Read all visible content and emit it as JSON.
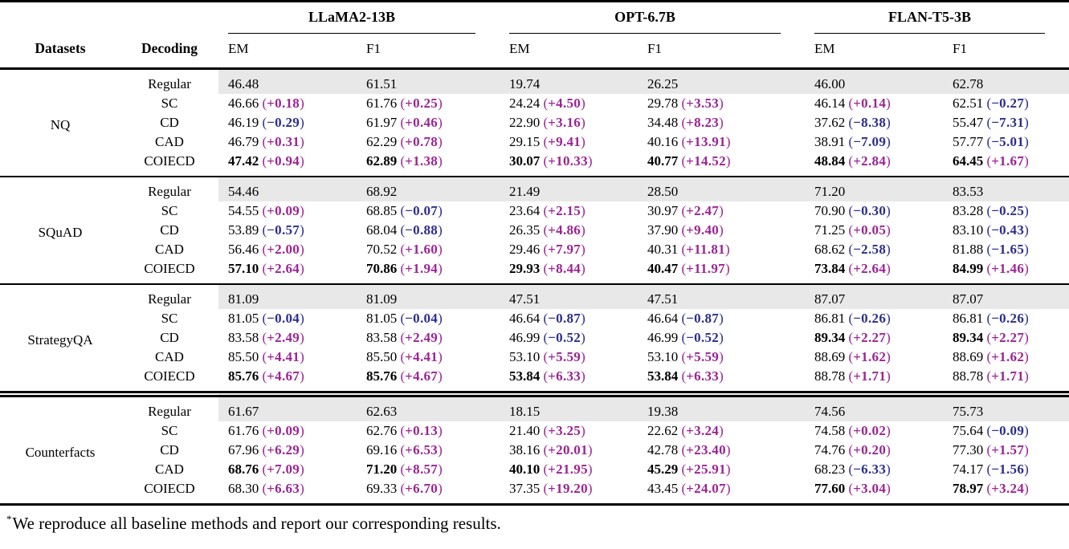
{
  "colors": {
    "positive_delta": "#9b2493",
    "negative_delta": "#2b2e8e",
    "highlight_row": "#e8e8e8"
  },
  "header": {
    "datasets_label": "Datasets",
    "decoding_label": "Decoding",
    "groups": [
      {
        "label": "LLaMA2-13B"
      },
      {
        "label": "OPT-6.7B"
      },
      {
        "label": "FLAN-T5-3B"
      }
    ],
    "metrics": [
      "EM",
      "F1",
      "EM",
      "F1",
      "EM",
      "F1"
    ]
  },
  "sections": [
    {
      "dataset": "NQ",
      "separator": "single",
      "rows": [
        {
          "decoding": "Regular",
          "highlight": true,
          "cells": [
            {
              "v": "46.48"
            },
            {
              "v": "61.51"
            },
            {
              "v": "19.74"
            },
            {
              "v": "26.25"
            },
            {
              "v": "46.00"
            },
            {
              "v": "62.78"
            }
          ]
        },
        {
          "decoding": "SC",
          "cells": [
            {
              "v": "46.66",
              "d": "+0.18"
            },
            {
              "v": "61.76",
              "d": "+0.25"
            },
            {
              "v": "24.24",
              "d": "+4.50"
            },
            {
              "v": "29.78",
              "d": "+3.53"
            },
            {
              "v": "46.14",
              "d": "+0.14"
            },
            {
              "v": "62.51",
              "d": "−0.27"
            }
          ]
        },
        {
          "decoding": "CD",
          "cells": [
            {
              "v": "46.19",
              "d": "−0.29"
            },
            {
              "v": "61.97",
              "d": "+0.46"
            },
            {
              "v": "22.90",
              "d": "+3.16"
            },
            {
              "v": "34.48",
              "d": "+8.23"
            },
            {
              "v": "37.62",
              "d": "−8.38"
            },
            {
              "v": "55.47",
              "d": "−7.31"
            }
          ]
        },
        {
          "decoding": "CAD",
          "cells": [
            {
              "v": "46.79",
              "d": "+0.31"
            },
            {
              "v": "62.29",
              "d": "+0.78"
            },
            {
              "v": "29.15",
              "d": "+9.41"
            },
            {
              "v": "40.16",
              "d": "+13.91"
            },
            {
              "v": "38.91",
              "d": "−7.09"
            },
            {
              "v": "57.77",
              "d": "−5.01"
            }
          ]
        },
        {
          "decoding": "COIECD",
          "cells": [
            {
              "v": "47.42",
              "b": true,
              "d": "+0.94"
            },
            {
              "v": "62.89",
              "b": true,
              "d": "+1.38"
            },
            {
              "v": "30.07",
              "b": true,
              "d": "+10.33"
            },
            {
              "v": "40.77",
              "b": true,
              "d": "+14.52"
            },
            {
              "v": "48.84",
              "b": true,
              "d": "+2.84"
            },
            {
              "v": "64.45",
              "b": true,
              "d": "+1.67"
            }
          ]
        }
      ]
    },
    {
      "dataset": "SQuAD",
      "separator": "single",
      "rows": [
        {
          "decoding": "Regular",
          "highlight": true,
          "cells": [
            {
              "v": "54.46"
            },
            {
              "v": "68.92"
            },
            {
              "v": "21.49"
            },
            {
              "v": "28.50"
            },
            {
              "v": "71.20"
            },
            {
              "v": "83.53"
            }
          ]
        },
        {
          "decoding": "SC",
          "cells": [
            {
              "v": "54.55",
              "d": "+0.09"
            },
            {
              "v": "68.85",
              "d": "−0.07"
            },
            {
              "v": "23.64",
              "d": "+2.15"
            },
            {
              "v": "30.97",
              "d": "+2.47"
            },
            {
              "v": "70.90",
              "d": "−0.30"
            },
            {
              "v": "83.28",
              "d": "−0.25"
            }
          ]
        },
        {
          "decoding": "CD",
          "cells": [
            {
              "v": "53.89",
              "d": "−0.57"
            },
            {
              "v": "68.04",
              "d": "−0.88"
            },
            {
              "v": "26.35",
              "d": "+4.86"
            },
            {
              "v": "37.90",
              "d": "+9.40"
            },
            {
              "v": "71.25",
              "d": "+0.05"
            },
            {
              "v": "83.10",
              "d": "−0.43"
            }
          ]
        },
        {
          "decoding": "CAD",
          "cells": [
            {
              "v": "56.46",
              "d": "+2.00"
            },
            {
              "v": "70.52",
              "d": "+1.60"
            },
            {
              "v": "29.46",
              "d": "+7.97"
            },
            {
              "v": "40.31",
              "d": "+11.81"
            },
            {
              "v": "68.62",
              "d": "−2.58"
            },
            {
              "v": "81.88",
              "d": "−1.65"
            }
          ]
        },
        {
          "decoding": "COIECD",
          "cells": [
            {
              "v": "57.10",
              "b": true,
              "d": "+2.64"
            },
            {
              "v": "70.86",
              "b": true,
              "d": "+1.94"
            },
            {
              "v": "29.93",
              "b": true,
              "d": "+8.44"
            },
            {
              "v": "40.47",
              "b": true,
              "d": "+11.97"
            },
            {
              "v": "73.84",
              "b": true,
              "d": "+2.64"
            },
            {
              "v": "84.99",
              "b": true,
              "d": "+1.46"
            }
          ]
        }
      ]
    },
    {
      "dataset": "StrategyQA",
      "separator": "single",
      "rows": [
        {
          "decoding": "Regular",
          "highlight": true,
          "cells": [
            {
              "v": "81.09"
            },
            {
              "v": "81.09"
            },
            {
              "v": "47.51"
            },
            {
              "v": "47.51"
            },
            {
              "v": "87.07"
            },
            {
              "v": "87.07"
            }
          ]
        },
        {
          "decoding": "SC",
          "cells": [
            {
              "v": "81.05",
              "d": "−0.04"
            },
            {
              "v": "81.05",
              "d": "−0.04"
            },
            {
              "v": "46.64",
              "d": "−0.87"
            },
            {
              "v": "46.64",
              "d": "−0.87"
            },
            {
              "v": "86.81",
              "d": "−0.26"
            },
            {
              "v": "86.81",
              "d": "−0.26"
            }
          ]
        },
        {
          "decoding": "CD",
          "cells": [
            {
              "v": "83.58",
              "d": "+2.49"
            },
            {
              "v": "83.58",
              "d": "+2.49"
            },
            {
              "v": "46.99",
              "d": "−0.52"
            },
            {
              "v": "46.99",
              "d": "−0.52"
            },
            {
              "v": "89.34",
              "b": true,
              "d": "+2.27"
            },
            {
              "v": "89.34",
              "b": true,
              "d": "+2.27"
            }
          ]
        },
        {
          "decoding": "CAD",
          "cells": [
            {
              "v": "85.50",
              "d": "+4.41"
            },
            {
              "v": "85.50",
              "d": "+4.41"
            },
            {
              "v": "53.10",
              "d": "+5.59"
            },
            {
              "v": "53.10",
              "d": "+5.59"
            },
            {
              "v": "88.69",
              "d": "+1.62"
            },
            {
              "v": "88.69",
              "d": "+1.62"
            }
          ]
        },
        {
          "decoding": "COIECD",
          "cells": [
            {
              "v": "85.76",
              "b": true,
              "d": "+4.67"
            },
            {
              "v": "85.76",
              "b": true,
              "d": "+4.67"
            },
            {
              "v": "53.84",
              "b": true,
              "d": "+6.33"
            },
            {
              "v": "53.84",
              "b": true,
              "d": "+6.33"
            },
            {
              "v": "88.78",
              "d": "+1.71"
            },
            {
              "v": "88.78",
              "d": "+1.71"
            }
          ]
        }
      ]
    },
    {
      "dataset": "Counterfacts",
      "separator": "double",
      "rows": [
        {
          "decoding": "Regular",
          "highlight": true,
          "cells": [
            {
              "v": "61.67"
            },
            {
              "v": "62.63"
            },
            {
              "v": "18.15"
            },
            {
              "v": "19.38"
            },
            {
              "v": "74.56"
            },
            {
              "v": "75.73"
            }
          ]
        },
        {
          "decoding": "SC",
          "cells": [
            {
              "v": "61.76",
              "d": "+0.09"
            },
            {
              "v": "62.76",
              "d": "+0.13"
            },
            {
              "v": "21.40",
              "d": "+3.25"
            },
            {
              "v": "22.62",
              "d": "+3.24"
            },
            {
              "v": "74.58",
              "d": "+0.02"
            },
            {
              "v": "75.64",
              "d": "−0.09"
            }
          ]
        },
        {
          "decoding": "CD",
          "cells": [
            {
              "v": "67.96",
              "d": "+6.29"
            },
            {
              "v": "69.16",
              "d": "+6.53"
            },
            {
              "v": "38.16",
              "d": "+20.01"
            },
            {
              "v": "42.78",
              "d": "+23.40"
            },
            {
              "v": "74.76",
              "d": "+0.20"
            },
            {
              "v": "77.30",
              "d": "+1.57"
            }
          ]
        },
        {
          "decoding": "CAD",
          "cells": [
            {
              "v": "68.76",
              "b": true,
              "d": "+7.09"
            },
            {
              "v": "71.20",
              "b": true,
              "d": "+8.57"
            },
            {
              "v": "40.10",
              "b": true,
              "d": "+21.95"
            },
            {
              "v": "45.29",
              "b": true,
              "d": "+25.91"
            },
            {
              "v": "68.23",
              "d": "−6.33"
            },
            {
              "v": "74.17",
              "d": "−1.56"
            }
          ]
        },
        {
          "decoding": "COIECD",
          "cells": [
            {
              "v": "68.30",
              "d": "+6.63"
            },
            {
              "v": "69.33",
              "d": "+6.70"
            },
            {
              "v": "37.35",
              "d": "+19.20"
            },
            {
              "v": "43.45",
              "d": "+24.07"
            },
            {
              "v": "77.60",
              "b": true,
              "d": "+3.04"
            },
            {
              "v": "78.97",
              "b": true,
              "d": "+3.24"
            }
          ]
        }
      ]
    }
  ],
  "footnote": {
    "marker": "*",
    "text": "We reproduce all baseline methods and report our corresponding results."
  }
}
